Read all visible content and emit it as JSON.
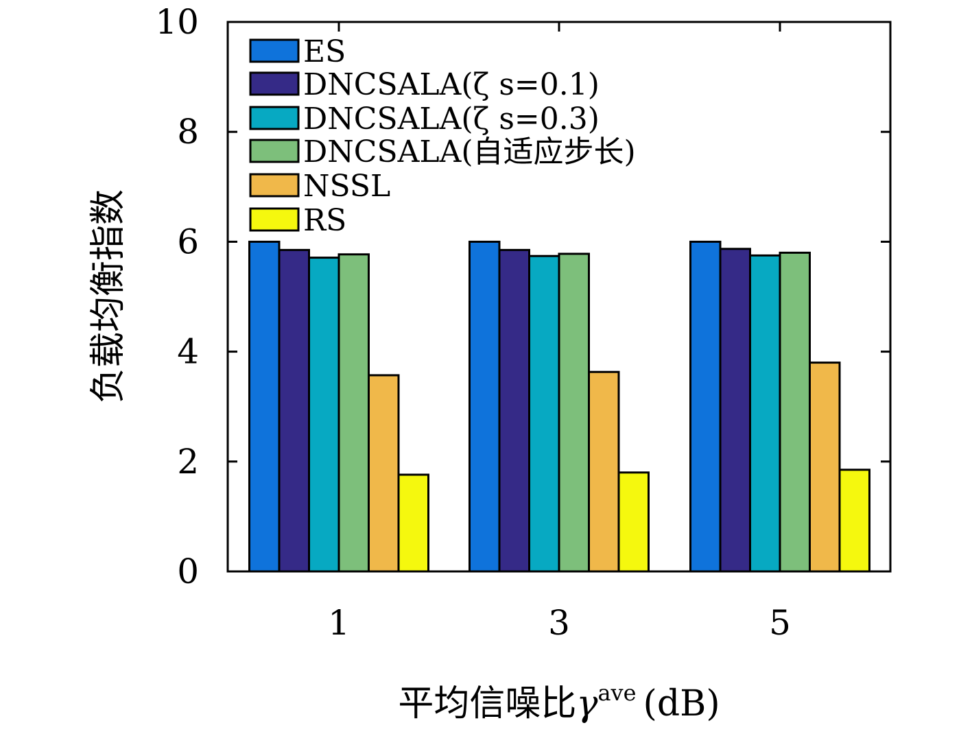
{
  "chart_data": {
    "type": "bar",
    "categories": [
      "1",
      "3",
      "5"
    ],
    "series": [
      {
        "name": "ES",
        "color": "#0f73db",
        "values": [
          6.0,
          6.0,
          6.0
        ]
      },
      {
        "name": "DNCSALA(ζ s=0.1)",
        "color": "#352a87",
        "values": [
          5.85,
          5.85,
          5.87
        ]
      },
      {
        "name": "DNCSALA(ζ s=0.3)",
        "color": "#07a9c2",
        "values": [
          5.71,
          5.74,
          5.75
        ]
      },
      {
        "name": "DNCSALA(自适应步长)",
        "color": "#7dbf7b",
        "values": [
          5.77,
          5.78,
          5.8
        ]
      },
      {
        "name": "NSSL",
        "color": "#f0b84a",
        "values": [
          3.57,
          3.63,
          3.8
        ]
      },
      {
        "name": "RS",
        "color": "#f5f80e",
        "values": [
          1.76,
          1.8,
          1.85
        ]
      }
    ],
    "ylim": [
      0,
      10
    ],
    "yticks": [
      "0",
      "2",
      "4",
      "6",
      "8",
      "10"
    ],
    "ylabel": "负载均衡指数",
    "xlabel": "平均信噪比",
    "xlabel_symbol": "γ",
    "xlabel_sup": "ave",
    "xlabel_unit": "(dB)",
    "legend_position": "top-left"
  }
}
